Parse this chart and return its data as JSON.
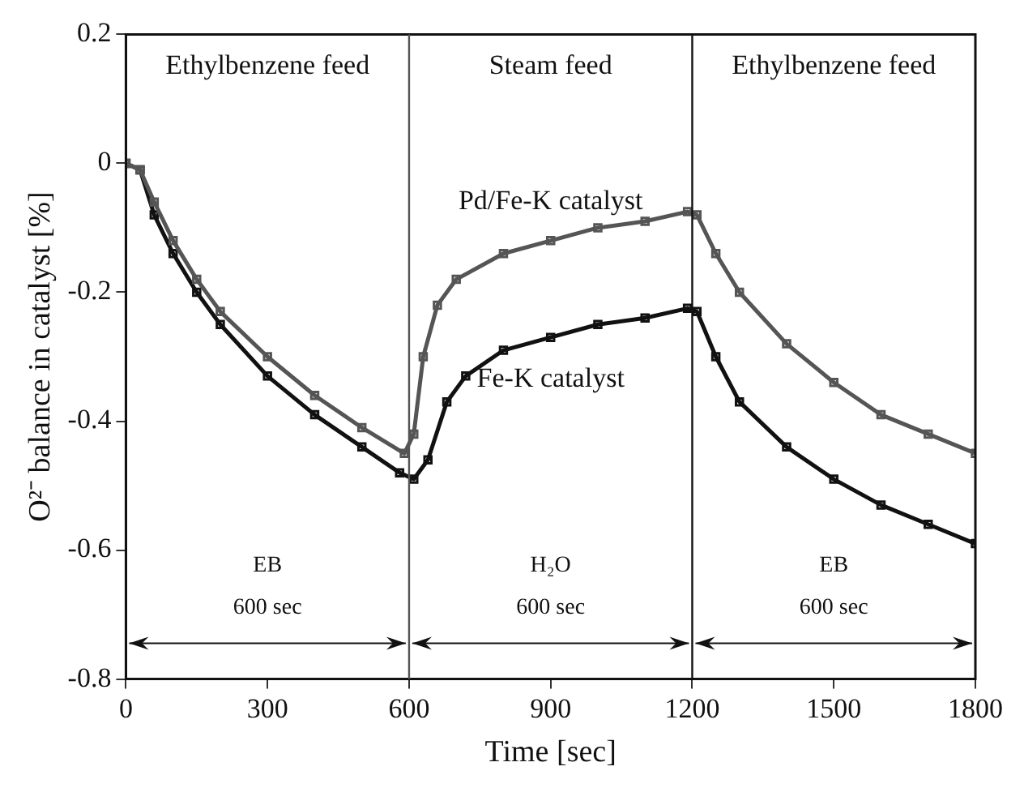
{
  "chart_data": {
    "type": "line",
    "xlabel": "Time [sec]",
    "ylabel": "O²⁻ balance in catalyst [%]",
    "xlim": [
      0,
      1800
    ],
    "xticks": [
      0,
      300,
      600,
      900,
      1200,
      1500,
      1800
    ],
    "ylim": [
      -0.8,
      0.2
    ],
    "yticks": [
      -0.8,
      -0.6,
      -0.4,
      -0.2,
      0,
      0.2
    ],
    "grid": false,
    "legend": false,
    "marker": "square",
    "line_style": "solid",
    "series": [
      {
        "name": "Pd/Fe-K catalyst",
        "color": "#555555",
        "x": [
          0,
          30,
          60,
          100,
          150,
          200,
          300,
          400,
          500,
          590,
          610,
          630,
          660,
          700,
          800,
          900,
          1000,
          1100,
          1190,
          1210,
          1250,
          1300,
          1400,
          1500,
          1600,
          1700,
          1800
        ],
        "values": [
          0,
          -0.01,
          -0.06,
          -0.12,
          -0.18,
          -0.23,
          -0.3,
          -0.36,
          -0.41,
          -0.45,
          -0.42,
          -0.3,
          -0.22,
          -0.18,
          -0.14,
          -0.12,
          -0.1,
          -0.09,
          -0.075,
          -0.08,
          -0.14,
          -0.2,
          -0.28,
          -0.34,
          -0.39,
          -0.42,
          -0.45
        ]
      },
      {
        "name": "Fe-K catalyst",
        "color": "#111111",
        "x": [
          0,
          30,
          60,
          100,
          150,
          200,
          300,
          400,
          500,
          580,
          610,
          640,
          680,
          720,
          800,
          900,
          1000,
          1100,
          1190,
          1210,
          1250,
          1300,
          1400,
          1500,
          1600,
          1700,
          1800
        ],
        "values": [
          0,
          -0.01,
          -0.08,
          -0.14,
          -0.2,
          -0.25,
          -0.33,
          -0.39,
          -0.44,
          -0.48,
          -0.49,
          -0.46,
          -0.37,
          -0.33,
          -0.29,
          -0.27,
          -0.25,
          -0.24,
          -0.225,
          -0.23,
          -0.3,
          -0.37,
          -0.44,
          -0.49,
          -0.53,
          -0.56,
          -0.59
        ]
      }
    ],
    "ref_lines": [
      {
        "axis": "x",
        "value": 600,
        "color": "#555555"
      },
      {
        "axis": "x",
        "value": 1200,
        "color": "#111111"
      }
    ],
    "annotations": [
      "Ethylbenzene feed",
      "Steam feed",
      "Ethylbenzene feed",
      "EB",
      "600 sec",
      "H₂O",
      "600 sec",
      "EB",
      "600 sec"
    ]
  }
}
